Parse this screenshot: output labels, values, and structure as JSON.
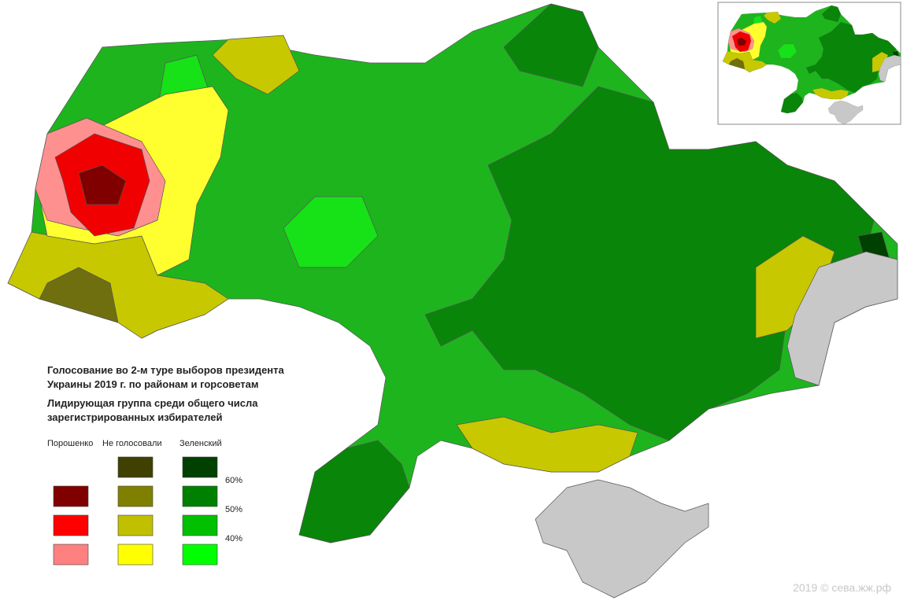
{
  "title": [
    "Голосование во 2-м туре выборов президента",
    "Украины 2019 г. по районам и горсоветам"
  ],
  "subtitle": [
    "Лидирующая группа среди общего числа",
    "зарегистрированных избирателей"
  ],
  "legend": {
    "columns": [
      {
        "label": "Порошенко",
        "colors": [
          "#800000",
          "#ff0000",
          "#ff8080"
        ]
      },
      {
        "label": "Не голосовали",
        "colors": [
          "#404000",
          "#808000",
          "#c0c000",
          "#ffff00"
        ]
      },
      {
        "label": "Зеленский",
        "colors": [
          "#004000",
          "#008000",
          "#00c000",
          "#00ff00"
        ]
      }
    ],
    "thresholds": [
      "60%",
      "50%",
      "40%"
    ]
  },
  "credit": "2019 © сева.жж.рф"
}
